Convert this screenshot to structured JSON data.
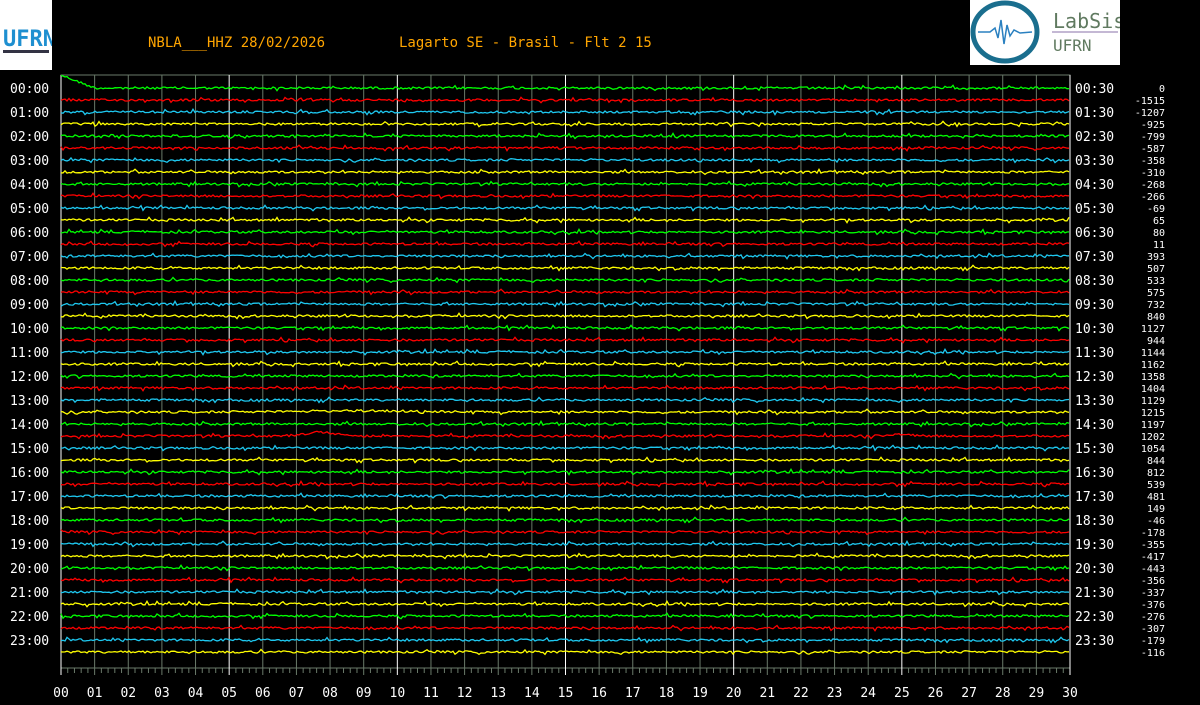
{
  "header": {
    "station": "NBLA___HHZ 28/02/2026",
    "location": "Lagarto SE - Brasil - Flt 2 15"
  },
  "logos": {
    "left": "UFRN",
    "right_line1": "LabSis",
    "right_line2": "UFRN"
  },
  "chart_data": {
    "type": "line",
    "subtype": "helicorder",
    "colors": [
      "#00ff00",
      "#ff0000",
      "#1ec8f0",
      "#ffff00"
    ],
    "x_ticks": [
      "00",
      "01",
      "02",
      "03",
      "04",
      "05",
      "06",
      "07",
      "08",
      "09",
      "10",
      "11",
      "12",
      "13",
      "14",
      "15",
      "16",
      "17",
      "18",
      "19",
      "20",
      "21",
      "22",
      "23",
      "24",
      "25",
      "26",
      "27",
      "28",
      "29",
      "30"
    ],
    "xlim": [
      0,
      30
    ],
    "left_labels": [
      "00:00",
      "01:00",
      "02:00",
      "03:00",
      "04:00",
      "05:00",
      "06:00",
      "07:00",
      "08:00",
      "09:00",
      "10:00",
      "11:00",
      "12:00",
      "13:00",
      "14:00",
      "15:00",
      "16:00",
      "17:00",
      "18:00",
      "19:00",
      "20:00",
      "21:00",
      "22:00",
      "23:00"
    ],
    "right_labels": [
      "00:30",
      "01:30",
      "02:30",
      "03:30",
      "04:30",
      "05:30",
      "06:30",
      "07:30",
      "08:30",
      "09:30",
      "10:30",
      "11:30",
      "12:30",
      "13:30",
      "14:30",
      "15:30",
      "16:30",
      "17:30",
      "18:30",
      "19:30",
      "20:30",
      "21:30",
      "22:30",
      "23:30"
    ],
    "offsets": [
      "0",
      "-1515",
      "-1207",
      "-925",
      "-799",
      "-587",
      "-358",
      "-310",
      "-268",
      "-266",
      "-69",
      "65",
      "80",
      "11",
      "393",
      "507",
      "533",
      "575",
      "732",
      "840",
      "1127",
      "944",
      "1144",
      "1162",
      "1358",
      "1404",
      "1129",
      "1215",
      "1197",
      "1202",
      "1054",
      "844",
      "812",
      "539",
      "481",
      "149",
      "-46",
      "-178",
      "-355",
      "-417",
      "-443",
      "-356",
      "-337",
      "-376",
      "-276",
      "-307",
      "-179",
      "-116"
    ],
    "grid": true
  }
}
